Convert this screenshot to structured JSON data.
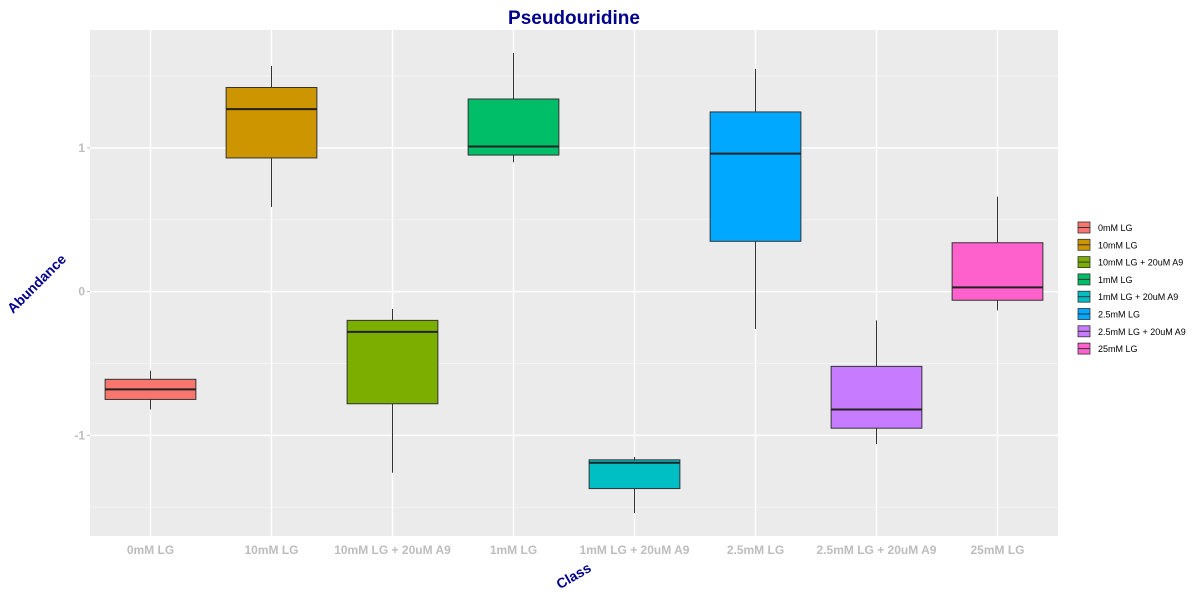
{
  "chart_data": {
    "type": "boxplot",
    "title": "Pseudouridine",
    "xlabel": "Class",
    "ylabel": "Abundance",
    "ylim": [
      -1.7,
      1.82
    ],
    "yticks": [
      -1,
      0,
      1
    ],
    "grid": true,
    "legend_position": "right",
    "categories": [
      "0mM LG",
      "10mM LG",
      "10mM LG + 20uM A9",
      "1mM LG",
      "1mM LG + 20uM A9",
      "2.5mM LG",
      "2.5mM LG + 20uM A9",
      "25mM LG"
    ],
    "series": [
      {
        "name": "0mM LG",
        "color": "#F8766D",
        "min": -0.82,
        "q1": -0.75,
        "median": -0.68,
        "q3": -0.61,
        "max": -0.55
      },
      {
        "name": "10mM LG",
        "color": "#CD9600",
        "min": 0.59,
        "q1": 0.93,
        "median": 1.27,
        "q3": 1.42,
        "max": 1.57
      },
      {
        "name": "10mM LG + 20uM A9",
        "color": "#7CAE00",
        "min": -1.26,
        "q1": -0.78,
        "median": -0.28,
        "q3": -0.2,
        "max": -0.12
      },
      {
        "name": "1mM LG",
        "color": "#00BE67",
        "min": 0.9,
        "q1": 0.95,
        "median": 1.01,
        "q3": 1.34,
        "max": 1.66
      },
      {
        "name": "1mM LG + 20uM A9",
        "color": "#00BFC4",
        "min": -1.54,
        "q1": -1.37,
        "median": -1.19,
        "q3": -1.17,
        "max": -1.15
      },
      {
        "name": "2.5mM LG",
        "color": "#00A9FF",
        "min": -0.26,
        "q1": 0.35,
        "median": 0.96,
        "q3": 1.25,
        "max": 1.55
      },
      {
        "name": "2.5mM LG + 20uM A9",
        "color": "#C77CFF",
        "min": -1.06,
        "q1": -0.95,
        "median": -0.82,
        "q3": -0.52,
        "max": -0.2
      },
      {
        "name": "25mM LG",
        "color": "#FF61CC",
        "min": -0.13,
        "q1": -0.06,
        "median": 0.03,
        "q3": 0.34,
        "max": 0.66
      }
    ]
  }
}
